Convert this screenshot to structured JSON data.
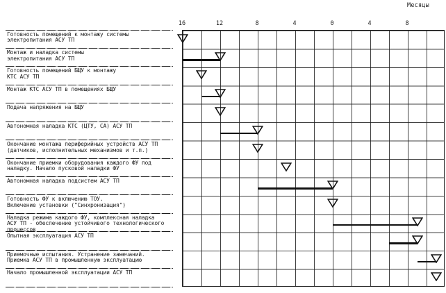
{
  "axis": {
    "title": "Месяцы",
    "ticks": [
      {
        "label": "16",
        "line": 0
      },
      {
        "label": "12",
        "line": 2
      },
      {
        "label": "8",
        "line": 4
      },
      {
        "label": "4",
        "line": 6
      },
      {
        "label": "0",
        "line": 8
      },
      {
        "label": "4",
        "line": 10
      },
      {
        "label": "8",
        "line": 12
      }
    ]
  },
  "colors": {
    "ink": "#1c1c1c",
    "background": "#ffffff"
  },
  "chart_data": {
    "type": "gantt",
    "title": "",
    "x_axis": {
      "label": "Месяцы",
      "tick_labels": [
        "16",
        "12",
        "8",
        "4",
        "0",
        "4",
        "8"
      ],
      "months_per_column": 2,
      "range": [
        16,
        -12
      ],
      "note": "месяцы до нулевой точки (слева) и после неё (справа)"
    },
    "grid": {
      "columns": 14,
      "rows": 14
    },
    "tasks": [
      {
        "label": "Готовность помещений к монтажу системы\nэлектропитания АСУ ТП",
        "milestone_month": 16,
        "bar": null
      },
      {
        "label": "Монтаж и наладка системы\nэлектропитания АСУ ТП",
        "milestone_month": 12,
        "bar": [
          16,
          12
        ]
      },
      {
        "label": "Готовность помещений БЩУ к монтажу\nКТС АСУ ТП",
        "milestone_month": 14,
        "bar": null
      },
      {
        "label": "Монтаж КТС АСУ ТП в помещениях БЩУ",
        "milestone_month": 12,
        "bar": [
          14,
          12
        ]
      },
      {
        "label": "Подача напряжения на БЩУ",
        "milestone_month": 12,
        "bar": null
      },
      {
        "label": "Автономная наладка КТС (ЦТУ, СА) АСУ ТП",
        "milestone_month": 8,
        "bar": [
          12,
          8
        ]
      },
      {
        "label": "Окончание монтажа периферийных устройств АСУ ТП\n(датчиков, исполнительных механизмов и т.п.)",
        "milestone_month": 8,
        "bar": null
      },
      {
        "label": "Окончание приемки оборудования каждого ФУ под\nналадку. Начало пусковой наладки ФУ",
        "milestone_month": 5,
        "bar": null
      },
      {
        "label": "Автономная наладка подсистем АСУ ТП",
        "milestone_month": 0,
        "bar": [
          8,
          0
        ]
      },
      {
        "label": "Готовность ФУ к включению ТОУ.\nВключение установки (\"Синхронизация\")",
        "milestone_month": 0,
        "bar": null
      },
      {
        "label": "Наладка режима каждого ФУ, комплексная наладка\nАСУ ТП - обеспечение устойчивого технологического\nпроцессов",
        "milestone_month": -9,
        "bar": [
          0,
          -9
        ]
      },
      {
        "label": "Опытная эксплуатация АСУ ТП",
        "milestone_month": -9,
        "bar": [
          -6,
          -9
        ]
      },
      {
        "label": "Приемочные испытания. Устранение замечаний.\nПриемка АСУ ТП в промышленную эксплуатацию",
        "milestone_month": -11,
        "bar": [
          -9,
          -11
        ]
      },
      {
        "label": "Начало промышленной эксплуатации АСУ ТП",
        "milestone_month": -11,
        "bar": null
      }
    ]
  }
}
